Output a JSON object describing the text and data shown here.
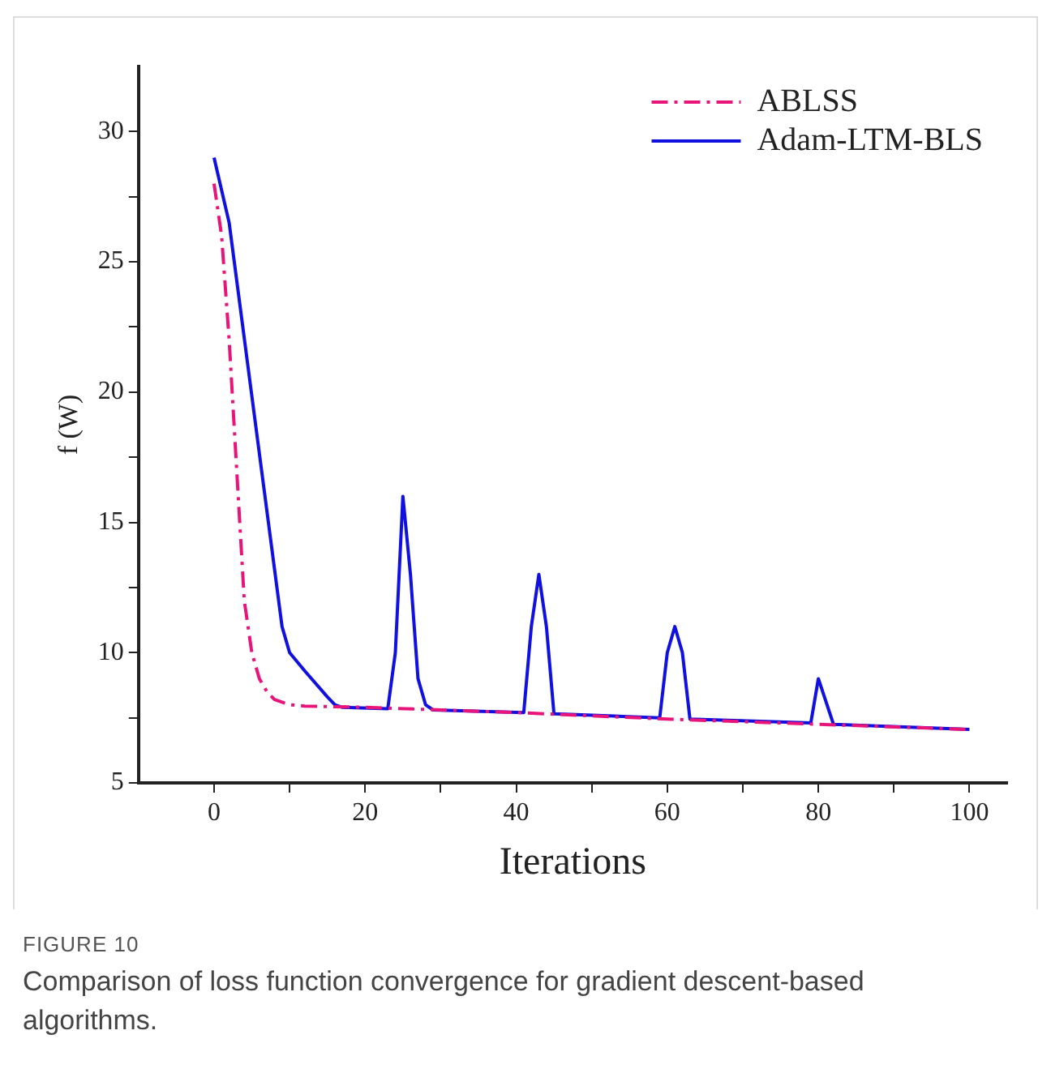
{
  "chart_data": {
    "type": "line",
    "xlabel": "Iterations",
    "ylabel": "f (W)",
    "xlim": [
      -10,
      105
    ],
    "xticks": [
      0,
      {
        "value": 10,
        "label": null
      },
      20,
      {
        "value": 30,
        "label": null
      },
      40,
      {
        "value": 50,
        "label": null
      },
      60,
      {
        "value": 70,
        "label": null
      },
      80,
      {
        "value": 90,
        "label": null
      },
      100
    ],
    "ylim": [
      5,
      32.5
    ],
    "yticks": [
      5,
      {
        "value": 7.5,
        "label": null
      },
      10,
      {
        "value": 12.5,
        "label": null
      },
      15,
      {
        "value": 17.5,
        "label": null
      },
      20,
      {
        "value": 22.5,
        "label": null
      },
      25,
      {
        "value": 27.5,
        "label": null
      },
      30
    ],
    "grid": false,
    "legend": "top right",
    "marker": "none",
    "series": [
      {
        "name": "ABLSS",
        "color": "#e8147a",
        "line_style": "dashed",
        "x": [
          0,
          1,
          2,
          3,
          4,
          5,
          6,
          7,
          8,
          10,
          12,
          20,
          40,
          60,
          80,
          100
        ],
        "values": [
          28,
          26,
          22,
          17,
          12,
          10,
          9,
          8.5,
          8.2,
          8,
          7.95,
          7.9,
          7.7,
          7.45,
          7.25,
          7.05
        ]
      },
      {
        "name": "Adam-LTM-BLS",
        "color": "#1010e0",
        "line_style": "solid",
        "x": [
          0,
          2,
          9,
          10,
          12,
          15,
          16,
          17,
          23,
          24,
          25,
          26,
          27,
          28,
          29,
          41,
          42,
          43,
          44,
          45,
          59,
          60,
          61,
          62,
          63,
          79,
          80,
          82,
          100
        ],
        "values": [
          29,
          26.5,
          11,
          10,
          9.3,
          8.3,
          8,
          7.9,
          7.85,
          10,
          16,
          13,
          9,
          8,
          7.8,
          7.7,
          11,
          13,
          11,
          7.65,
          7.5,
          10,
          11,
          10,
          7.45,
          7.3,
          9,
          7.25,
          7.05
        ]
      }
    ],
    "annotations": [
      "FIGURE 10",
      "Comparison of loss function convergence for gradient descent-based algorithms."
    ]
  }
}
